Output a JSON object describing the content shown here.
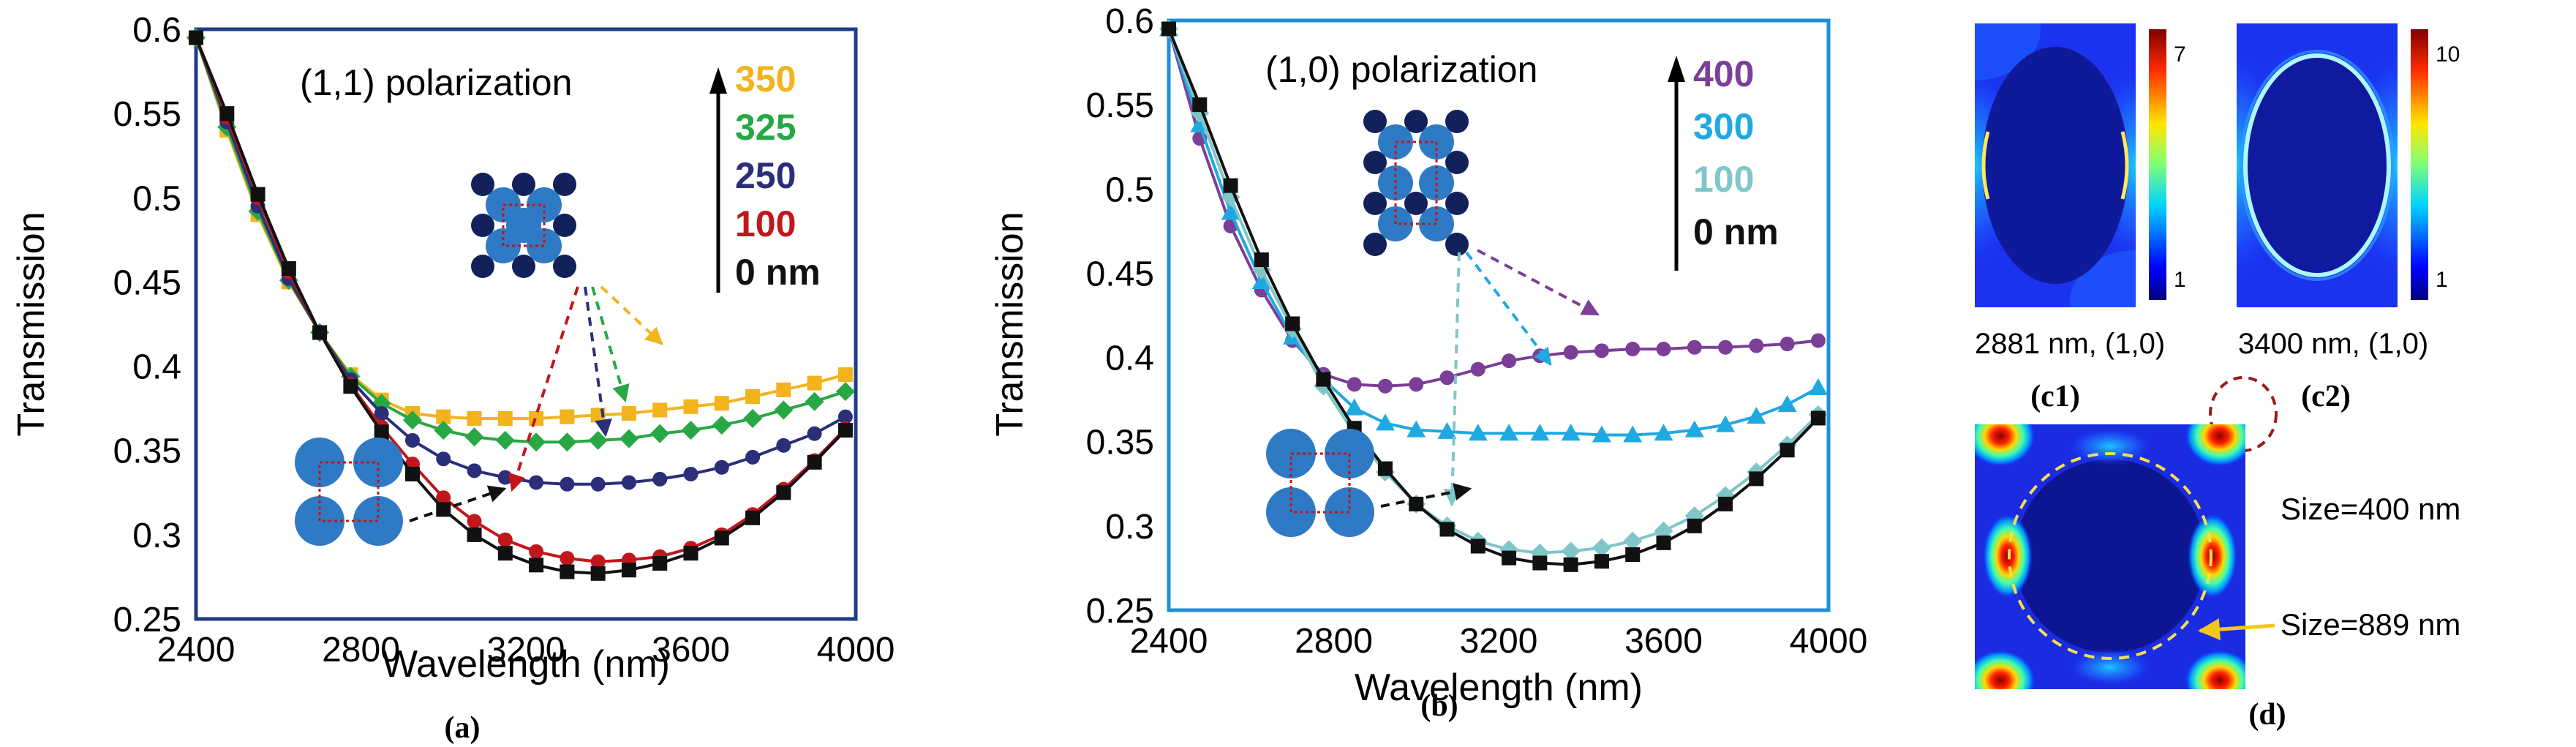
{
  "chart_data": [
    {
      "panel": "(a)",
      "type": "line",
      "xlabel": "Wavelength (nm)",
      "ylabel": "Transmission",
      "xlim": [
        2400,
        4000
      ],
      "ylim": [
        0.25,
        0.6
      ],
      "xticks": [
        2400,
        2800,
        3200,
        3600,
        4000
      ],
      "yticks": [
        0.25,
        0.3,
        0.35,
        0.4,
        0.45,
        0.5,
        0.55,
        0.6
      ],
      "annotation": "(1,1) polarization",
      "x": [
        2400,
        2475,
        2550,
        2625,
        2700,
        2775,
        2850,
        2925,
        3000,
        3075,
        3150,
        3225,
        3300,
        3375,
        3450,
        3525,
        3600,
        3675,
        3750,
        3825,
        3900,
        3975
      ],
      "series": [
        {
          "name": "350",
          "color": "#f2b31c",
          "marker": "square",
          "values": [
            0.595,
            0.54,
            0.49,
            0.45,
            0.42,
            0.395,
            0.38,
            0.372,
            0.37,
            0.369,
            0.369,
            0.369,
            0.37,
            0.371,
            0.372,
            0.374,
            0.376,
            0.378,
            0.382,
            0.386,
            0.39,
            0.395
          ]
        },
        {
          "name": "325",
          "color": "#27a844",
          "marker": "diamond",
          "values": [
            0.595,
            0.542,
            0.492,
            0.451,
            0.42,
            0.394,
            0.378,
            0.368,
            0.362,
            0.358,
            0.356,
            0.355,
            0.355,
            0.356,
            0.357,
            0.36,
            0.362,
            0.365,
            0.369,
            0.374,
            0.379,
            0.385
          ]
        },
        {
          "name": "250",
          "color": "#2b2f7a",
          "marker": "circle",
          "values": [
            0.595,
            0.545,
            0.495,
            0.452,
            0.42,
            0.392,
            0.372,
            0.356,
            0.345,
            0.338,
            0.334,
            0.331,
            0.33,
            0.33,
            0.331,
            0.333,
            0.336,
            0.34,
            0.346,
            0.353,
            0.36,
            0.37
          ]
        },
        {
          "name": "100",
          "color": "#c1161c",
          "marker": "circle",
          "values": [
            0.595,
            0.548,
            0.5,
            0.456,
            0.42,
            0.389,
            0.364,
            0.342,
            0.322,
            0.308,
            0.297,
            0.29,
            0.286,
            0.284,
            0.285,
            0.287,
            0.292,
            0.3,
            0.312,
            0.327,
            0.344,
            0.363
          ]
        },
        {
          "name": "0 nm",
          "color": "#111111",
          "marker": "square",
          "values": [
            0.595,
            0.55,
            0.502,
            0.458,
            0.42,
            0.388,
            0.361,
            0.336,
            0.315,
            0.3,
            0.289,
            0.282,
            0.278,
            0.277,
            0.279,
            0.283,
            0.289,
            0.298,
            0.31,
            0.325,
            0.343,
            0.362
          ]
        }
      ]
    },
    {
      "panel": "(b)",
      "type": "line",
      "xlabel": "Wavelength (nm)",
      "ylabel": "Transmission",
      "xlim": [
        2400,
        4000
      ],
      "ylim": [
        0.25,
        0.6
      ],
      "xticks": [
        2400,
        2800,
        3200,
        3600,
        4000
      ],
      "yticks": [
        0.25,
        0.3,
        0.35,
        0.4,
        0.45,
        0.5,
        0.55,
        0.6
      ],
      "annotation": "(1,0) polarization",
      "x": [
        2400,
        2475,
        2550,
        2625,
        2700,
        2775,
        2850,
        2925,
        3000,
        3075,
        3150,
        3225,
        3300,
        3375,
        3450,
        3525,
        3600,
        3675,
        3750,
        3825,
        3900,
        3975
      ],
      "series": [
        {
          "name": "400",
          "color": "#7b3f98",
          "marker": "circle",
          "values": [
            0.595,
            0.53,
            0.478,
            0.44,
            0.41,
            0.39,
            0.384,
            0.383,
            0.384,
            0.388,
            0.393,
            0.398,
            0.401,
            0.403,
            0.404,
            0.405,
            0.405,
            0.406,
            0.406,
            0.407,
            0.408,
            0.41
          ]
        },
        {
          "name": "300",
          "color": "#1fa9e1",
          "marker": "triangle",
          "values": [
            0.595,
            0.538,
            0.486,
            0.445,
            0.412,
            0.387,
            0.37,
            0.361,
            0.357,
            0.356,
            0.355,
            0.355,
            0.355,
            0.355,
            0.354,
            0.354,
            0.355,
            0.357,
            0.36,
            0.365,
            0.372,
            0.382
          ]
        },
        {
          "name": "100",
          "color": "#7fc6c9",
          "marker": "diamond",
          "values": [
            0.595,
            0.545,
            0.495,
            0.452,
            0.417,
            0.383,
            0.355,
            0.332,
            0.313,
            0.3,
            0.291,
            0.286,
            0.284,
            0.285,
            0.287,
            0.291,
            0.297,
            0.306,
            0.318,
            0.332,
            0.348,
            0.366
          ]
        },
        {
          "name": "0  nm",
          "color": "#111111",
          "marker": "square",
          "values": [
            0.595,
            0.55,
            0.502,
            0.458,
            0.42,
            0.387,
            0.358,
            0.334,
            0.313,
            0.298,
            0.288,
            0.281,
            0.278,
            0.277,
            0.279,
            0.283,
            0.29,
            0.3,
            0.313,
            0.328,
            0.345,
            0.364
          ]
        }
      ]
    }
  ],
  "panel_labels": {
    "a": "(a)",
    "b": "(b)",
    "c1": "(c1)",
    "c2": "(c2)",
    "d": "(d)"
  },
  "field_maps": {
    "c1": {
      "caption": "2881 nm, (1,0)",
      "cbar_max": "7",
      "cbar_min": "1"
    },
    "c2": {
      "caption": "3400 nm, (1,0)",
      "cbar_max": "10",
      "cbar_min": "1"
    },
    "d": {
      "label_small": "Size=400 nm",
      "label_large": "Size=889 nm"
    }
  }
}
